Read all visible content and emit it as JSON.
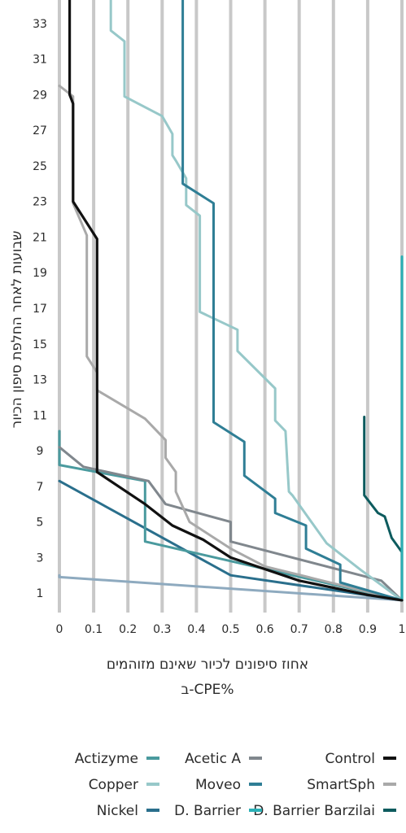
{
  "chart_data": {
    "type": "line",
    "ylabel": "שבועות לאחר החלפת סיפון הכיור",
    "xlabel_line1": "אחוז סיפונים לכיור שאינם מזוהמים",
    "xlabel_line2": "ב-CPE%",
    "xlim": [
      0,
      1
    ],
    "ylim": [
      0,
      34
    ],
    "x_ticks": [
      "0",
      "0.1",
      "0.2",
      "0.3",
      "0.4",
      "0.5",
      "0.6",
      "0.7",
      "0.8",
      "0.9",
      "1"
    ],
    "y_ticks": [
      "1",
      "3",
      "5",
      "7",
      "9",
      "11",
      "13",
      "15",
      "17",
      "19",
      "21",
      "23",
      "25",
      "27",
      "29",
      "31",
      "33"
    ],
    "grid": "vertical",
    "legend_position": "bottom",
    "series": [
      {
        "name": "Control",
        "color": "#111111",
        "points": [
          [
            1,
            0.6
          ],
          [
            0.9,
            0.9
          ],
          [
            0.7,
            1.7
          ],
          [
            0.5,
            3.0
          ],
          [
            0.42,
            4.0
          ],
          [
            0.33,
            4.8
          ],
          [
            0.25,
            6.0
          ],
          [
            0.11,
            7.8
          ],
          [
            0.11,
            20.9
          ],
          [
            0.04,
            23.0
          ],
          [
            0.04,
            28.5
          ],
          [
            0.03,
            29.0
          ],
          [
            0.03,
            34.8
          ]
        ]
      },
      {
        "name": "Acetic A",
        "color": "#80878d",
        "points": [
          [
            1,
            0.6
          ],
          [
            0.94,
            1.7
          ],
          [
            0.5,
            3.9
          ],
          [
            0.5,
            5.0
          ],
          [
            0.31,
            6.0
          ],
          [
            0.26,
            7.3
          ],
          [
            0.07,
            8.1
          ],
          [
            0,
            9.2
          ]
        ]
      },
      {
        "name": "Actizyme",
        "color": "#4a9a9e",
        "points": [
          [
            1,
            0.6
          ],
          [
            0.25,
            3.9
          ],
          [
            0.25,
            7.3
          ],
          [
            0.11,
            7.8
          ],
          [
            0,
            8.2
          ],
          [
            0,
            10.1
          ]
        ]
      },
      {
        "name": "Copper",
        "color": "#97c8c9",
        "points": [
          [
            1,
            0.6
          ],
          [
            0.93,
            1.6
          ],
          [
            0.88,
            2.3
          ],
          [
            0.78,
            3.8
          ],
          [
            0.68,
            6.5
          ],
          [
            0.67,
            6.7
          ],
          [
            0.66,
            10.1
          ],
          [
            0.63,
            10.7
          ],
          [
            0.63,
            12.5
          ],
          [
            0.52,
            14.6
          ],
          [
            0.52,
            15.8
          ],
          [
            0.41,
            16.8
          ],
          [
            0.41,
            22.2
          ],
          [
            0.37,
            22.8
          ],
          [
            0.37,
            24.3
          ],
          [
            0.34,
            25.3
          ],
          [
            0.33,
            25.6
          ],
          [
            0.33,
            26.8
          ],
          [
            0.3,
            27.8
          ],
          [
            0.19,
            28.9
          ],
          [
            0.19,
            32.0
          ],
          [
            0.15,
            32.6
          ],
          [
            0.15,
            34.8
          ]
        ]
      },
      {
        "name": "Moveo",
        "color": "#2f7e95",
        "points": [
          [
            1,
            0.6
          ],
          [
            0.82,
            1.6
          ],
          [
            0.82,
            2.6
          ],
          [
            0.72,
            3.5
          ],
          [
            0.72,
            4.8
          ],
          [
            0.63,
            5.5
          ],
          [
            0.63,
            6.3
          ],
          [
            0.54,
            7.6
          ],
          [
            0.54,
            9.5
          ],
          [
            0.45,
            10.6
          ],
          [
            0.45,
            22.9
          ],
          [
            0.36,
            24.0
          ],
          [
            0.36,
            34.8
          ]
        ]
      },
      {
        "name": "SmartSph",
        "color": "#a9a9a9",
        "points": [
          [
            1,
            0.6
          ],
          [
            0.6,
            2.5
          ],
          [
            0.5,
            3.5
          ],
          [
            0.38,
            5.0
          ],
          [
            0.34,
            6.7
          ],
          [
            0.34,
            7.8
          ],
          [
            0.31,
            8.6
          ],
          [
            0.31,
            9.6
          ],
          [
            0.25,
            10.8
          ],
          [
            0.11,
            12.4
          ],
          [
            0.11,
            13.4
          ],
          [
            0.08,
            14.3
          ],
          [
            0.08,
            21.1
          ],
          [
            0.04,
            22.9
          ],
          [
            0.04,
            28.9
          ],
          [
            0,
            29.5
          ]
        ]
      },
      {
        "name": "Nickel",
        "color": "#2a6f8c",
        "points": [
          [
            1,
            0.6
          ],
          [
            0.5,
            2.0
          ],
          [
            0,
            7.3
          ]
        ]
      },
      {
        "name": "D. Barrier",
        "color": "#2bb0b6",
        "points": [
          [
            1,
            0.6
          ],
          [
            1,
            19.9
          ]
        ]
      },
      {
        "name": "D. Barrier Barzilai",
        "color": "#0d5b5e",
        "points": [
          [
            1,
            0.6
          ],
          [
            1,
            3.3
          ],
          [
            0.97,
            4.1
          ],
          [
            0.95,
            5.3
          ],
          [
            0.93,
            5.5
          ],
          [
            0.89,
            6.5
          ],
          [
            0.89,
            10.9
          ]
        ]
      },
      {
        "name": "",
        "color": "#8eaabf",
        "points": [
          [
            1,
            0.6
          ],
          [
            0,
            1.9
          ],
          [
            0,
            2.0
          ]
        ]
      }
    ],
    "legend": [
      {
        "label": "Control",
        "color": "#111111"
      },
      {
        "label": "SmartSph",
        "color": "#a9a9a9"
      },
      {
        "label": "D. Barrier Barzilai",
        "color": "#0d5b5e"
      },
      {
        "label": "Acetic A",
        "color": "#80878d"
      },
      {
        "label": "Moveo",
        "color": "#2f7e95"
      },
      {
        "label": "D. Barrier",
        "color": "#2bb0b6"
      },
      {
        "label": "Actizyme",
        "color": "#4a9a9e"
      },
      {
        "label": "Copper",
        "color": "#97c8c9"
      },
      {
        "label": "Nickel",
        "color": "#2a6f8c"
      }
    ]
  }
}
